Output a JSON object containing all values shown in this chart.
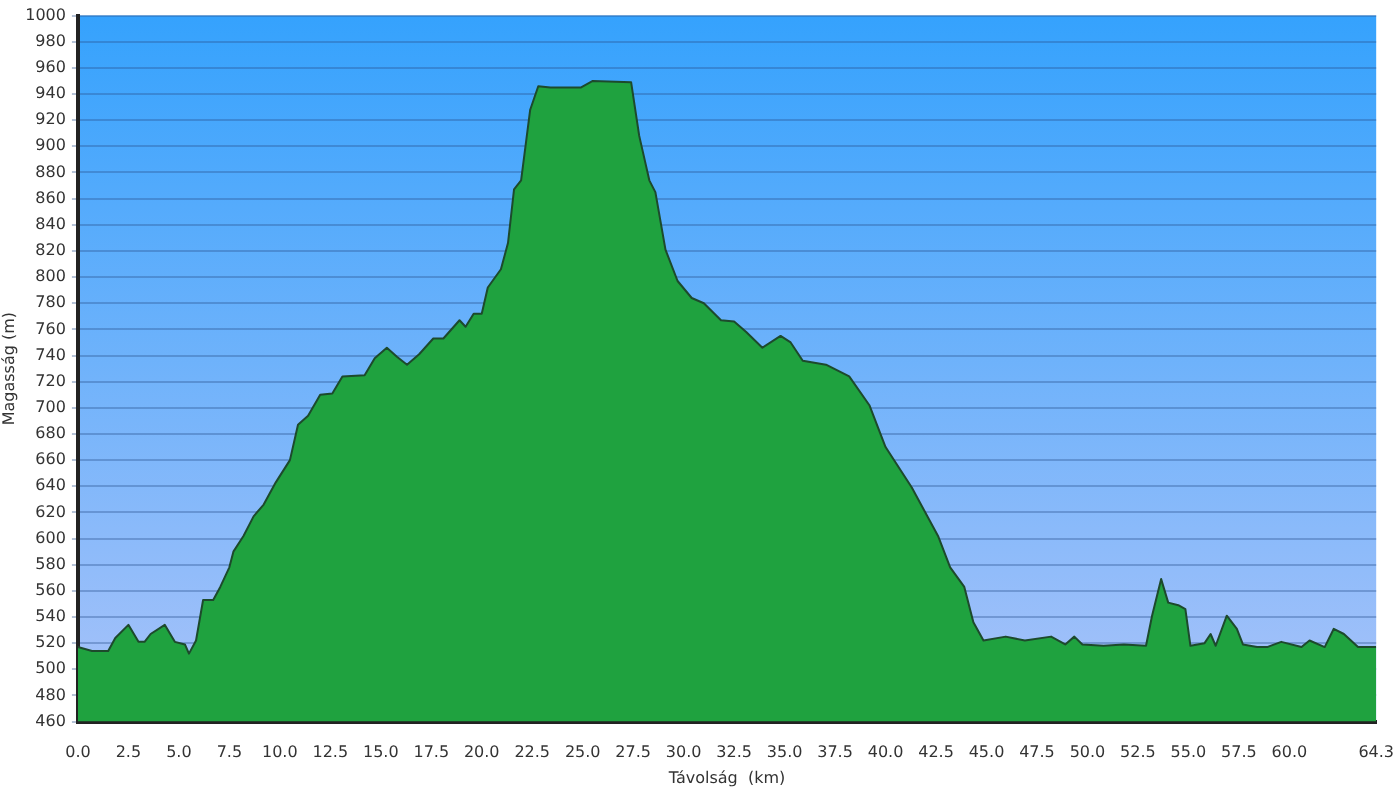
{
  "chart_data": {
    "type": "area",
    "xlabel": "Távolság  (km)",
    "ylabel": "Magasság (m)",
    "x": [
      0,
      0.7,
      1.5,
      1.85,
      2.5,
      3.0,
      3.3,
      3.6,
      4.3,
      4.8,
      5.3,
      5.5,
      5.85,
      6.2,
      6.7,
      7.05,
      7.5,
      7.7,
      8.2,
      8.7,
      9.2,
      9.8,
      10.5,
      10.9,
      11.4,
      12.0,
      12.6,
      13.1,
      14.2,
      14.7,
      15.3,
      15.8,
      16.3,
      16.9,
      17.6,
      18.1,
      18.9,
      19.2,
      19.6,
      20.0,
      20.3,
      20.95,
      21.3,
      21.6,
      21.95,
      22.4,
      22.8,
      23.4,
      24.9,
      25.5,
      27.4,
      27.8,
      28.3,
      28.6,
      29.1,
      29.7,
      30.4,
      31.0,
      31.85,
      32.5,
      33.1,
      33.9,
      34.8,
      35.3,
      35.9,
      37.05,
      38.2,
      39.2,
      40.0,
      41.3,
      42.6,
      43.2,
      43.9,
      44.35,
      44.85,
      45.95,
      46.9,
      48.2,
      48.9,
      49.35,
      49.75,
      50.8,
      51.8,
      52.9,
      53.2,
      53.65,
      54.0,
      54.5,
      54.85,
      55.1,
      55.8,
      56.1,
      56.35,
      56.9,
      57.4,
      57.7,
      58.4,
      58.9,
      59.6,
      60.6,
      61.0,
      61.75,
      62.2,
      62.7,
      63.4,
      64.3
    ],
    "series": [
      {
        "color": "#1fa23f",
        "values": [
          517,
          514,
          514,
          524,
          534,
          521,
          521,
          527,
          534,
          521,
          519,
          512,
          522,
          553,
          553,
          563,
          578,
          590,
          602,
          617,
          626,
          643,
          660,
          687,
          694,
          710,
          711,
          724,
          725,
          738,
          746,
          739,
          733,
          741,
          753,
          753,
          767,
          762,
          772,
          772,
          792,
          806,
          826,
          867,
          874,
          928,
          946,
          945,
          945,
          950,
          949,
          908,
          874,
          865,
          821,
          797,
          784,
          780,
          767,
          766,
          758,
          746,
          755,
          750,
          736,
          733,
          724,
          702,
          670,
          639,
          602,
          578,
          563,
          536,
          522,
          525,
          522,
          525,
          519,
          525,
          519,
          518,
          519,
          518,
          541,
          569,
          551,
          549,
          546,
          518,
          520,
          527,
          518,
          541,
          531,
          519,
          517,
          517,
          521,
          517,
          522,
          517,
          531,
          527,
          517,
          517
        ]
      }
    ],
    "xlim": [
      0,
      64.3
    ],
    "xticks": [
      {
        "value": 0,
        "label": "0.0"
      },
      {
        "value": 2.5,
        "label": "2.5"
      },
      {
        "value": 5,
        "label": "5.0"
      },
      {
        "value": 7.5,
        "label": "7.5"
      },
      {
        "value": 10,
        "label": "10.0"
      },
      {
        "value": 12.5,
        "label": "12.5"
      },
      {
        "value": 15,
        "label": "15.0"
      },
      {
        "value": 17.5,
        "label": "17.5"
      },
      {
        "value": 20,
        "label": "20.0"
      },
      {
        "value": 22.5,
        "label": "22.5"
      },
      {
        "value": 25,
        "label": "25.0"
      },
      {
        "value": 27.5,
        "label": "27.5"
      },
      {
        "value": 30,
        "label": "30.0"
      },
      {
        "value": 32.5,
        "label": "32.5"
      },
      {
        "value": 35,
        "label": "35.0"
      },
      {
        "value": 37.5,
        "label": "37.5"
      },
      {
        "value": 40,
        "label": "40.0"
      },
      {
        "value": 42.5,
        "label": "42.5"
      },
      {
        "value": 45,
        "label": "45.0"
      },
      {
        "value": 47.5,
        "label": "47.5"
      },
      {
        "value": 50,
        "label": "50.0"
      },
      {
        "value": 52.5,
        "label": "52.5"
      },
      {
        "value": 55,
        "label": "55.0"
      },
      {
        "value": 57.5,
        "label": "57.5"
      },
      {
        "value": 60,
        "label": "60.0"
      },
      {
        "value": 64.3,
        "label": "64.3"
      }
    ],
    "ylim": [
      460,
      1000
    ],
    "yticks": [
      460,
      480,
      500,
      520,
      540,
      560,
      580,
      600,
      620,
      640,
      660,
      680,
      700,
      720,
      740,
      760,
      780,
      800,
      820,
      840,
      860,
      880,
      900,
      920,
      940,
      960,
      980,
      1000
    ],
    "grid": "y",
    "legend": false
  }
}
